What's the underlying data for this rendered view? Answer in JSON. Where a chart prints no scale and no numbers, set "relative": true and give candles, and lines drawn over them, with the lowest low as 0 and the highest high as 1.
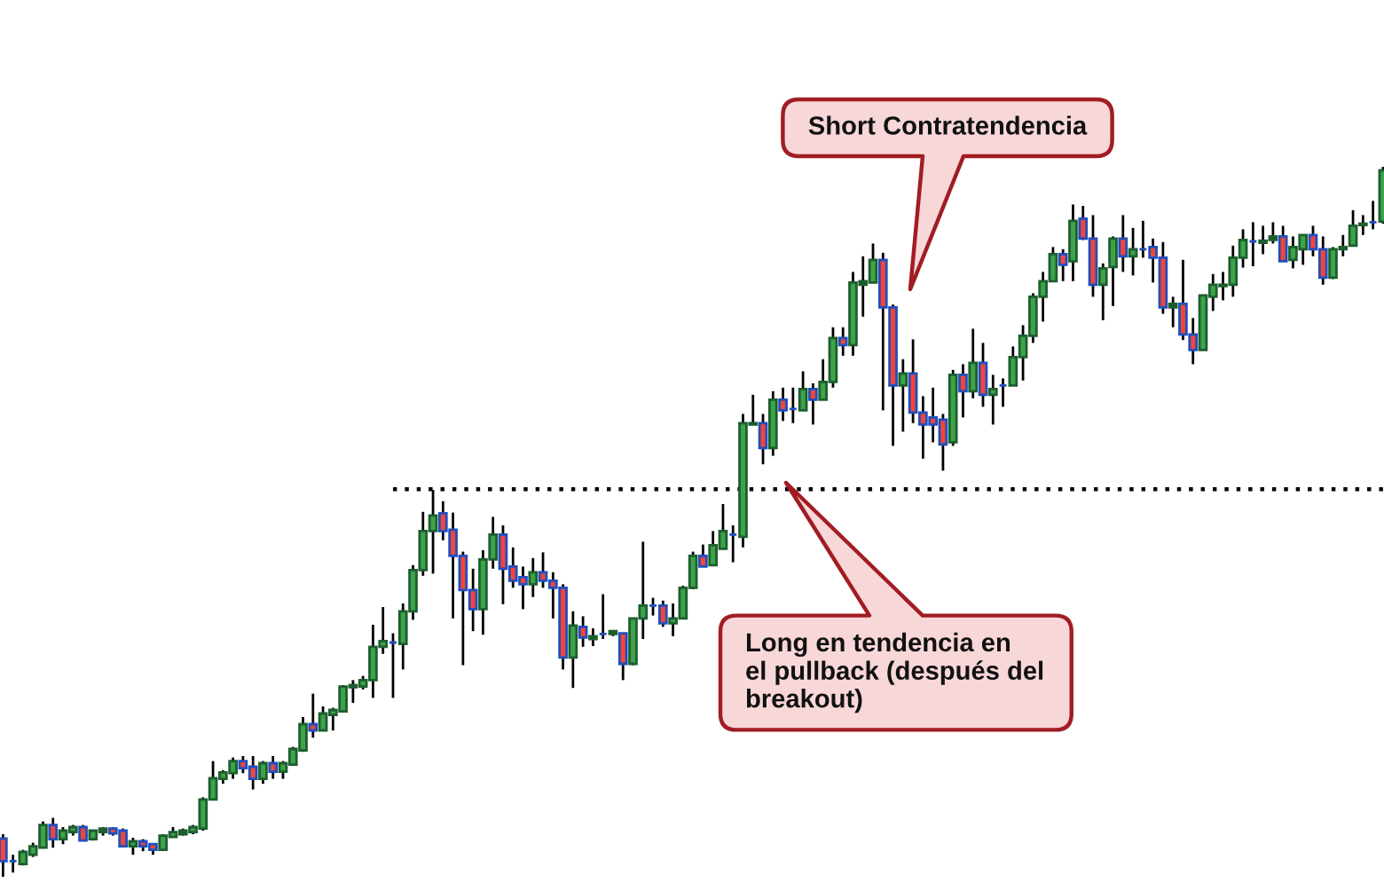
{
  "chart_data": {
    "type": "candlestick",
    "relative": true,
    "categories": [
      null,
      null,
      null,
      null,
      null,
      null,
      null,
      null,
      null,
      null,
      null,
      null,
      null,
      null,
      null,
      null,
      null,
      null,
      null,
      null,
      null,
      null,
      null,
      null,
      null,
      null,
      null,
      null,
      null,
      null,
      null,
      null,
      null,
      null,
      null,
      null,
      null,
      null,
      null,
      null,
      null,
      null,
      null,
      null,
      null,
      null,
      null,
      null,
      null,
      null,
      null,
      null,
      null,
      null,
      null,
      null,
      null,
      null,
      null,
      null,
      null,
      null,
      null,
      null,
      null,
      null,
      null,
      null,
      null,
      null,
      null,
      null,
      null,
      null,
      null,
      null,
      null,
      null,
      null,
      null,
      null,
      null,
      null,
      null,
      null,
      null,
      null,
      null,
      null,
      null,
      null,
      null,
      null,
      null,
      null,
      null,
      null,
      null,
      null,
      null,
      null,
      null,
      null,
      null,
      null,
      null,
      null,
      null,
      null,
      null,
      null,
      null,
      null,
      null,
      null,
      null,
      null,
      null,
      null,
      null,
      null,
      null,
      null,
      null,
      null,
      null,
      null,
      null,
      null,
      null,
      null,
      null,
      null,
      null,
      null,
      null,
      null,
      null,
      null
    ],
    "ohlc": [
      [
        0.054,
        0.06,
        0.0,
        0.022
      ],
      [
        0.022,
        0.031,
        0.006,
        0.022
      ],
      [
        0.018,
        0.038,
        0.016,
        0.035
      ],
      [
        0.031,
        0.048,
        0.028,
        0.043
      ],
      [
        0.041,
        0.078,
        0.041,
        0.073
      ],
      [
        0.073,
        0.083,
        0.041,
        0.053
      ],
      [
        0.053,
        0.07,
        0.046,
        0.065
      ],
      [
        0.063,
        0.073,
        0.058,
        0.07
      ],
      [
        0.07,
        0.073,
        0.051,
        0.051
      ],
      [
        0.053,
        0.065,
        0.051,
        0.065
      ],
      [
        0.063,
        0.07,
        0.058,
        0.068
      ],
      [
        0.068,
        0.07,
        0.058,
        0.061
      ],
      [
        0.065,
        0.068,
        0.043,
        0.043
      ],
      [
        0.043,
        0.055,
        0.031,
        0.05
      ],
      [
        0.05,
        0.053,
        0.036,
        0.043
      ],
      [
        0.046,
        0.046,
        0.031,
        0.038
      ],
      [
        0.038,
        0.06,
        0.038,
        0.058
      ],
      [
        0.056,
        0.07,
        0.056,
        0.063
      ],
      [
        0.06,
        0.068,
        0.058,
        0.065
      ],
      [
        0.063,
        0.073,
        0.06,
        0.07
      ],
      [
        0.068,
        0.112,
        0.065,
        0.109
      ],
      [
        0.109,
        0.163,
        0.109,
        0.139
      ],
      [
        0.138,
        0.15,
        0.131,
        0.147
      ],
      [
        0.146,
        0.168,
        0.138,
        0.163
      ],
      [
        0.163,
        0.17,
        0.146,
        0.153
      ],
      [
        0.155,
        0.17,
        0.123,
        0.138
      ],
      [
        0.138,
        0.163,
        0.131,
        0.16
      ],
      [
        0.16,
        0.17,
        0.138,
        0.148
      ],
      [
        0.148,
        0.163,
        0.138,
        0.16
      ],
      [
        0.158,
        0.183,
        0.158,
        0.18
      ],
      [
        0.178,
        0.225,
        0.176,
        0.215
      ],
      [
        0.215,
        0.258,
        0.196,
        0.206
      ],
      [
        0.206,
        0.24,
        0.206,
        0.23
      ],
      [
        0.228,
        0.238,
        0.206,
        0.235
      ],
      [
        0.233,
        0.27,
        0.233,
        0.268
      ],
      [
        0.267,
        0.277,
        0.245,
        0.27
      ],
      [
        0.268,
        0.283,
        0.264,
        0.277
      ],
      [
        0.277,
        0.355,
        0.252,
        0.324
      ],
      [
        0.324,
        0.38,
        0.314,
        0.332
      ],
      [
        0.33,
        0.343,
        0.252,
        0.33
      ],
      [
        0.328,
        0.385,
        0.292,
        0.374
      ],
      [
        0.374,
        0.439,
        0.362,
        0.432
      ],
      [
        0.432,
        0.514,
        0.424,
        0.487
      ],
      [
        0.487,
        0.545,
        0.427,
        0.509
      ],
      [
        0.512,
        0.529,
        0.474,
        0.487
      ],
      [
        0.489,
        0.513,
        0.364,
        0.452
      ],
      [
        0.452,
        0.458,
        0.298,
        0.404
      ],
      [
        0.404,
        0.434,
        0.346,
        0.377
      ],
      [
        0.377,
        0.46,
        0.341,
        0.447
      ],
      [
        0.447,
        0.507,
        0.434,
        0.482
      ],
      [
        0.482,
        0.495,
        0.384,
        0.434
      ],
      [
        0.437,
        0.464,
        0.407,
        0.417
      ],
      [
        0.422,
        0.437,
        0.377,
        0.412
      ],
      [
        0.412,
        0.449,
        0.394,
        0.429
      ],
      [
        0.429,
        0.457,
        0.407,
        0.417
      ],
      [
        0.417,
        0.429,
        0.364,
        0.407
      ],
      [
        0.407,
        0.412,
        0.292,
        0.309
      ],
      [
        0.309,
        0.374,
        0.266,
        0.354
      ],
      [
        0.352,
        0.367,
        0.324,
        0.337
      ],
      [
        0.335,
        0.35,
        0.325,
        0.339
      ],
      [
        0.342,
        0.398,
        0.335,
        0.342
      ],
      [
        0.342,
        0.346,
        0.339,
        0.346
      ],
      [
        0.343,
        0.343,
        0.277,
        0.3
      ],
      [
        0.3,
        0.364,
        0.298,
        0.364
      ],
      [
        0.364,
        0.472,
        0.335,
        0.382
      ],
      [
        0.382,
        0.393,
        0.368,
        0.382
      ],
      [
        0.382,
        0.389,
        0.352,
        0.357
      ],
      [
        0.357,
        0.385,
        0.339,
        0.364
      ],
      [
        0.364,
        0.41,
        0.364,
        0.407
      ],
      [
        0.407,
        0.458,
        0.405,
        0.452
      ],
      [
        0.452,
        0.468,
        0.437,
        0.437
      ],
      [
        0.439,
        0.487,
        0.439,
        0.467
      ],
      [
        0.462,
        0.525,
        0.462,
        0.487
      ],
      [
        0.482,
        0.495,
        0.443,
        0.482
      ],
      [
        0.479,
        0.652,
        0.464,
        0.639
      ],
      [
        0.637,
        0.679,
        0.637,
        0.639
      ],
      [
        0.639,
        0.652,
        0.581,
        0.604
      ],
      [
        0.604,
        0.684,
        0.593,
        0.672
      ],
      [
        0.672,
        0.689,
        0.642,
        0.657
      ],
      [
        0.659,
        0.689,
        0.639,
        0.659
      ],
      [
        0.657,
        0.712,
        0.657,
        0.687
      ],
      [
        0.687,
        0.695,
        0.637,
        0.672
      ],
      [
        0.672,
        0.729,
        0.672,
        0.697
      ],
      [
        0.697,
        0.774,
        0.689,
        0.759
      ],
      [
        0.759,
        0.774,
        0.734,
        0.749
      ],
      [
        0.749,
        0.852,
        0.734,
        0.837
      ],
      [
        0.834,
        0.874,
        0.789,
        0.839
      ],
      [
        0.837,
        0.892,
        0.837,
        0.869
      ],
      [
        0.869,
        0.879,
        0.657,
        0.802
      ],
      [
        0.802,
        0.806,
        0.607,
        0.692
      ],
      [
        0.692,
        0.729,
        0.627,
        0.709
      ],
      [
        0.709,
        0.757,
        0.639,
        0.654
      ],
      [
        0.654,
        0.677,
        0.589,
        0.637
      ],
      [
        0.647,
        0.689,
        0.612,
        0.637
      ],
      [
        0.644,
        0.652,
        0.572,
        0.609
      ],
      [
        0.612,
        0.714,
        0.607,
        0.707
      ],
      [
        0.707,
        0.722,
        0.647,
        0.684
      ],
      [
        0.684,
        0.772,
        0.674,
        0.724
      ],
      [
        0.724,
        0.752,
        0.662,
        0.679
      ],
      [
        0.679,
        0.707,
        0.637,
        0.687
      ],
      [
        0.692,
        0.702,
        0.662,
        0.692
      ],
      [
        0.692,
        0.747,
        0.692,
        0.732
      ],
      [
        0.732,
        0.777,
        0.699,
        0.762
      ],
      [
        0.762,
        0.822,
        0.752,
        0.817
      ],
      [
        0.817,
        0.852,
        0.782,
        0.839
      ],
      [
        0.839,
        0.887,
        0.839,
        0.877
      ],
      [
        0.877,
        0.884,
        0.839,
        0.862
      ],
      [
        0.867,
        0.947,
        0.839,
        0.924
      ],
      [
        0.927,
        0.945,
        0.897,
        0.899
      ],
      [
        0.899,
        0.932,
        0.817,
        0.834
      ],
      [
        0.834,
        0.864,
        0.784,
        0.857
      ],
      [
        0.859,
        0.902,
        0.804,
        0.899
      ],
      [
        0.899,
        0.932,
        0.852,
        0.874
      ],
      [
        0.874,
        0.914,
        0.847,
        0.884
      ],
      [
        0.884,
        0.924,
        0.872,
        0.884
      ],
      [
        0.887,
        0.899,
        0.837,
        0.872
      ],
      [
        0.872,
        0.894,
        0.793,
        0.802
      ],
      [
        0.802,
        0.817,
        0.774,
        0.807
      ],
      [
        0.807,
        0.869,
        0.756,
        0.764
      ],
      [
        0.764,
        0.787,
        0.722,
        0.742
      ],
      [
        0.742,
        0.819,
        0.742,
        0.819
      ],
      [
        0.817,
        0.849,
        0.797,
        0.834
      ],
      [
        0.832,
        0.852,
        0.812,
        0.834
      ],
      [
        0.834,
        0.889,
        0.817,
        0.872
      ],
      [
        0.872,
        0.912,
        0.858,
        0.897
      ],
      [
        0.895,
        0.922,
        0.86,
        0.895
      ],
      [
        0.893,
        0.917,
        0.877,
        0.896
      ],
      [
        0.897,
        0.922,
        0.892,
        0.902
      ],
      [
        0.902,
        0.917,
        0.867,
        0.867
      ],
      [
        0.869,
        0.902,
        0.857,
        0.887
      ],
      [
        0.884,
        0.904,
        0.862,
        0.904
      ],
      [
        0.904,
        0.917,
        0.874,
        0.884
      ],
      [
        0.884,
        0.902,
        0.834,
        0.844
      ],
      [
        0.844,
        0.887,
        0.842,
        0.884
      ],
      [
        0.884,
        0.904,
        0.874,
        0.887
      ],
      [
        0.889,
        0.939,
        0.889,
        0.917
      ],
      [
        0.918,
        0.932,
        0.904,
        0.92
      ],
      [
        0.922,
        0.952,
        0.912,
        0.922
      ],
      [
        0.923,
        1.0,
        0.92,
        0.995
      ]
    ],
    "colors": [
      "#f2453a",
      "#1f4fbf",
      "#3da34a",
      "#3da34a",
      "#3da34a",
      "#f2453a",
      "#3da34a",
      "#3da34a",
      "#f2453a",
      "#3da34a",
      "#1d5e2e",
      "#f2453a",
      "#f2453a",
      "#3da34a",
      "#f2453a",
      "#f2453a",
      "#3da34a",
      "#3da34a",
      "#1d5e2e",
      "#3da34a",
      "#3da34a",
      "#3da34a",
      "#3da34a",
      "#3da34a",
      "#f2453a",
      "#f2453a",
      "#3da34a",
      "#f2453a",
      "#3da34a",
      "#3da34a",
      "#3da34a",
      "#f2453a",
      "#3da34a",
      "#3da34a",
      "#3da34a",
      "#1d5e2e",
      "#3da34a",
      "#3da34a",
      "#3da34a",
      "#1f4fbf",
      "#3da34a",
      "#3da34a",
      "#3da34a",
      "#3da34a",
      "#f2453a",
      "#f2453a",
      "#f2453a",
      "#f2453a",
      "#3da34a",
      "#3da34a",
      "#f2453a",
      "#f2453a",
      "#f2453a",
      "#3da34a",
      "#f2453a",
      "#f2453a",
      "#f2453a",
      "#3da34a",
      "#f2453a",
      "#1d5e2e",
      "#1f4fbf",
      "#1d5e2e",
      "#f2453a",
      "#3da34a",
      "#3da34a",
      "#1f4fbf",
      "#f2453a",
      "#3da34a",
      "#3da34a",
      "#3da34a",
      "#f2453a",
      "#3da34a",
      "#3da34a",
      "#1f4fbf",
      "#3da34a",
      "#1d5e2e",
      "#f2453a",
      "#3da34a",
      "#f2453a",
      "#1f4fbf",
      "#3da34a",
      "#f2453a",
      "#3da34a",
      "#3da34a",
      "#f2453a",
      "#3da34a",
      "#1d5e2e",
      "#3da34a",
      "#f2453a",
      "#f2453a",
      "#3da34a",
      "#f2453a",
      "#f2453a",
      "#f2453a",
      "#f2453a",
      "#3da34a",
      "#f2453a",
      "#3da34a",
      "#f2453a",
      "#3da34a",
      "#1f4fbf",
      "#3da34a",
      "#3da34a",
      "#3da34a",
      "#3da34a",
      "#3da34a",
      "#f2453a",
      "#3da34a",
      "#f2453a",
      "#f2453a",
      "#3da34a",
      "#3da34a",
      "#f2453a",
      "#3da34a",
      "#1f4fbf",
      "#f2453a",
      "#f2453a",
      "#1d5e2e",
      "#f2453a",
      "#f2453a",
      "#3da34a",
      "#3da34a",
      "#1d5e2e",
      "#3da34a",
      "#3da34a",
      "#1f4fbf",
      "#1d5e2e",
      "#1d5e2e",
      "#f2453a",
      "#3da34a",
      "#3da34a",
      "#f2453a",
      "#f2453a",
      "#3da34a",
      "#1d5e2e",
      "#3da34a",
      "#1d5e2e",
      "#1f4fbf",
      "#3da34a"
    ],
    "series": [
      {
        "type": "line",
        "color": "#000000",
        "line_style": "dotted",
        "values": [
          null,
          null,
          null,
          null,
          null,
          null,
          null,
          null,
          null,
          null,
          null,
          null,
          null,
          null,
          null,
          null,
          null,
          null,
          null,
          null,
          null,
          null,
          null,
          null,
          null,
          null,
          null,
          null,
          null,
          null,
          null,
          null,
          null,
          null,
          null,
          null,
          null,
          null,
          null,
          0.546,
          0.546,
          0.546,
          0.546,
          0.546,
          0.546,
          0.546,
          0.546,
          0.546,
          0.546,
          0.546,
          0.546,
          0.546,
          0.546,
          0.546,
          0.546,
          0.546,
          0.546,
          0.546,
          0.546,
          0.546,
          0.546,
          0.546,
          0.546,
          0.546,
          0.546,
          0.546,
          0.546,
          0.546,
          0.546,
          0.546,
          0.546,
          0.546,
          0.546,
          0.546,
          0.546,
          0.546,
          0.546,
          0.546,
          0.546,
          0.546,
          0.546,
          0.546,
          0.546,
          0.546,
          0.546,
          0.546,
          0.546,
          0.546,
          0.546,
          0.546,
          0.546,
          0.546,
          0.546,
          0.546,
          0.546,
          0.546,
          0.546,
          0.546,
          0.546,
          0.546,
          0.546,
          0.546,
          0.546,
          0.546,
          0.546,
          0.546,
          0.546,
          0.546,
          0.546,
          0.546,
          0.546,
          0.546,
          0.546,
          0.546,
          0.546,
          0.546,
          0.546,
          0.546,
          0.546,
          0.546,
          0.546,
          0.546,
          0.546,
          0.546,
          0.546,
          0.546,
          0.546,
          0.546,
          0.546,
          0.546,
          0.546,
          0.546,
          0.546,
          0.546,
          0.546,
          0.546,
          0.546,
          0.546,
          0.546
        ]
      }
    ],
    "annotations": [
      "Short Contratendencia",
      "Long en tendencia en\nel pullback (después del\nbreakout)"
    ]
  }
}
